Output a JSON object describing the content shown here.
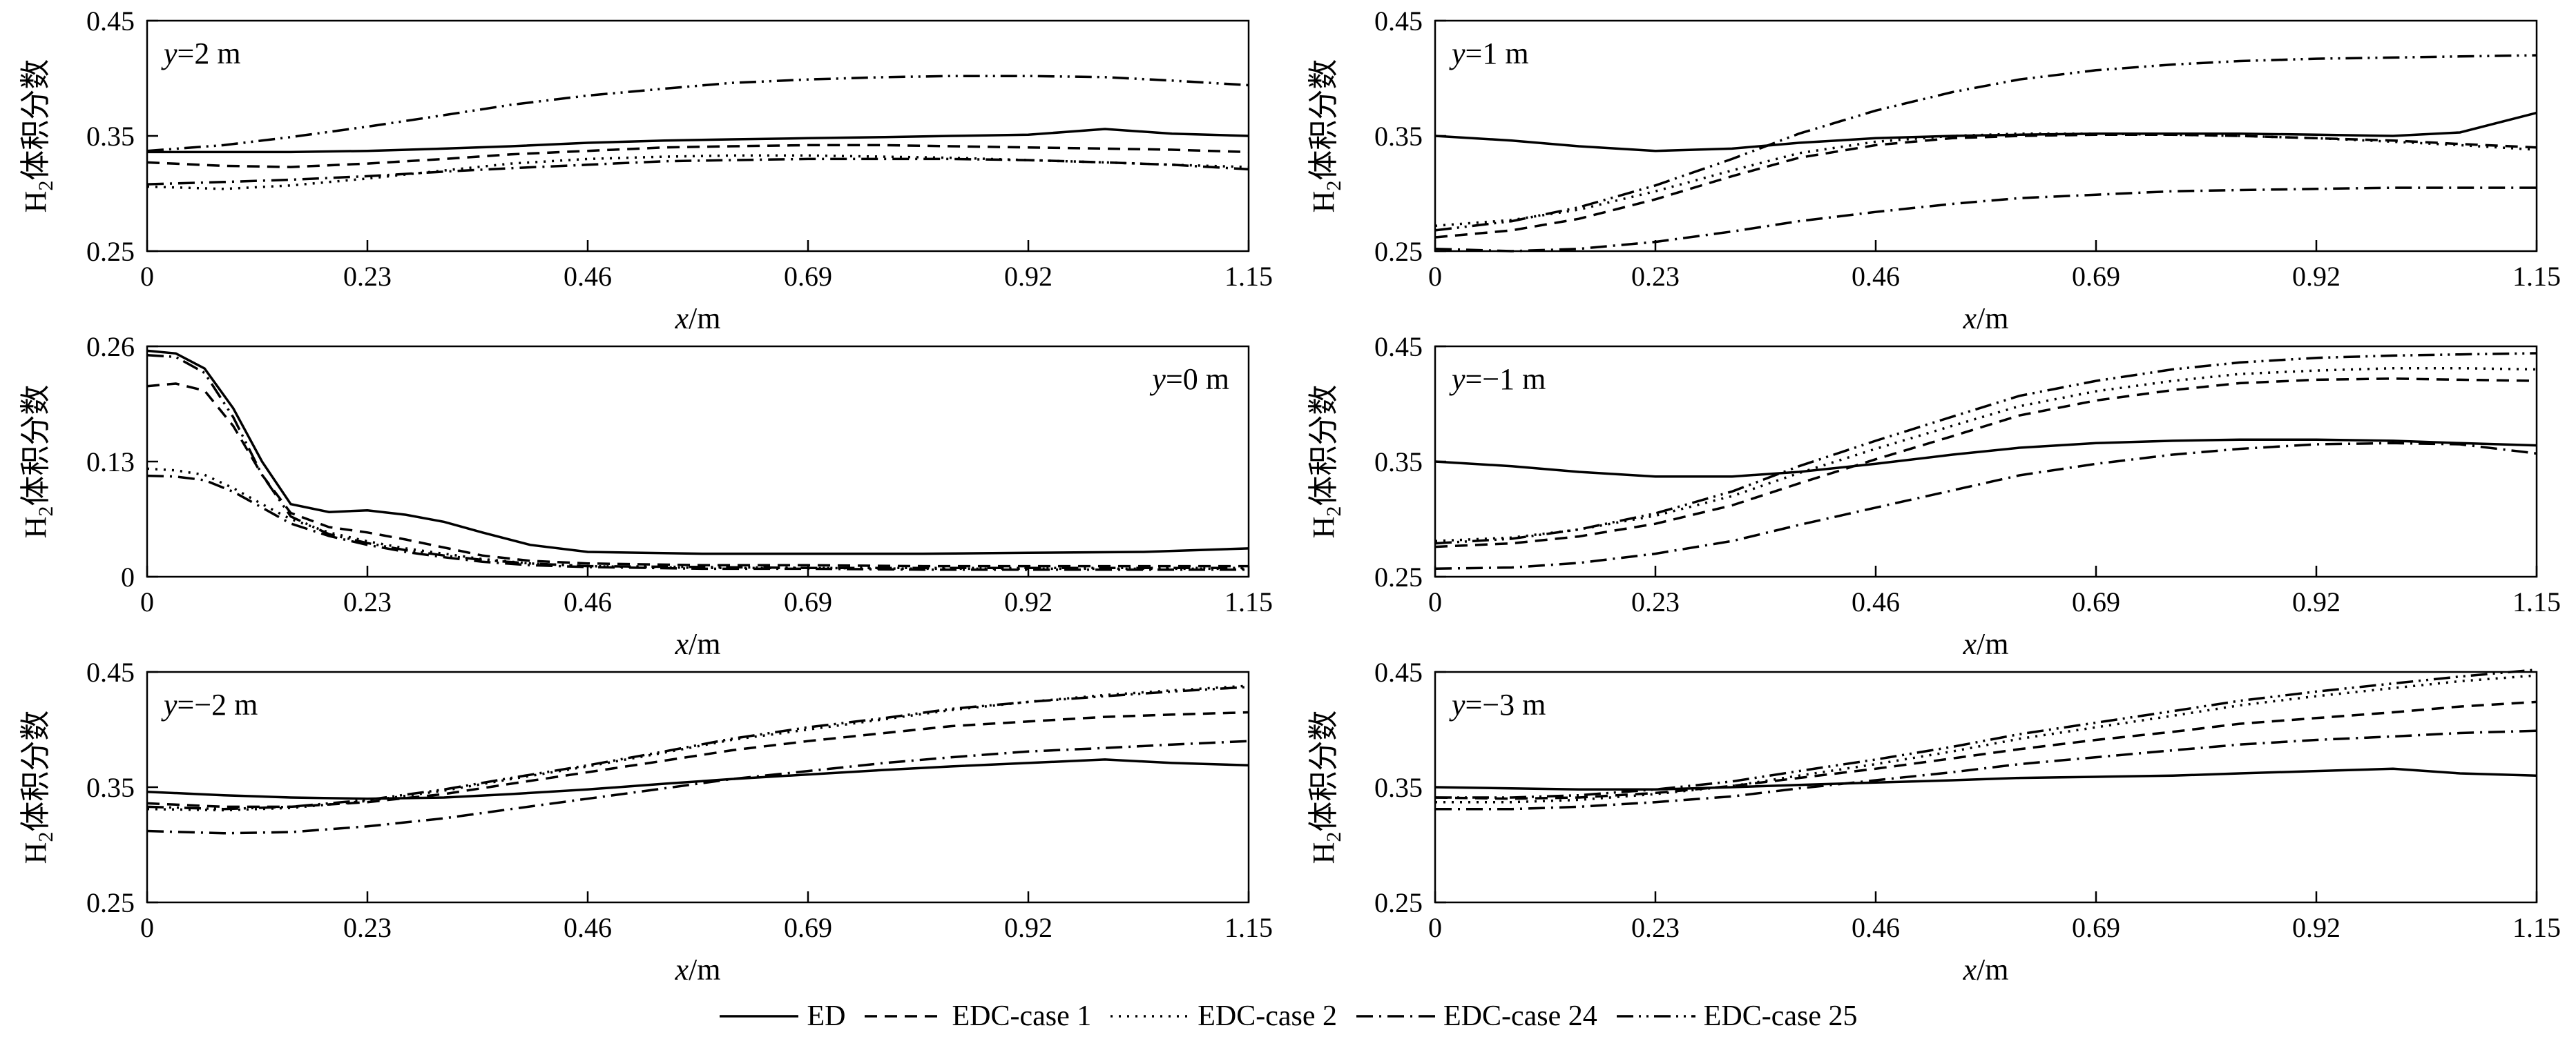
{
  "chart_data": {
    "type": "line",
    "xlabel_italic": "x",
    "xlabel_rest": "/m",
    "ylabel_base": "H",
    "ylabel_sub": "2",
    "ylabel_rest": "体积分数",
    "xlim": [
      0,
      1.15
    ],
    "xtick_values": [
      0,
      0.23,
      0.46,
      0.69,
      0.92,
      1.15
    ],
    "xticks": [
      "0",
      "0.23",
      "0.46",
      "0.69",
      "0.92",
      "1.15"
    ],
    "line_color": "#000000",
    "panels": [
      {
        "id": "y-2m",
        "annotation_italic": "y",
        "annotation_rest": "=2 m",
        "annotation_side": "left",
        "ylim": [
          0.25,
          0.45
        ],
        "yticks": {
          "values": [
            0.25,
            0.35,
            0.45
          ],
          "labels": [
            "0.25",
            "0.35",
            "0.45"
          ]
        },
        "x": [
          0,
          0.08,
          0.15,
          0.23,
          0.31,
          0.38,
          0.46,
          0.54,
          0.61,
          0.69,
          0.77,
          0.84,
          0.92,
          1.0,
          1.07,
          1.15
        ],
        "series": [
          {
            "name": "ED",
            "dash": "solid",
            "y": [
              0.336,
              0.336,
              0.336,
              0.337,
              0.339,
              0.341,
              0.344,
              0.346,
              0.347,
              0.348,
              0.349,
              0.35,
              0.351,
              0.356,
              0.352,
              0.35
            ]
          },
          {
            "name": "EDC-case 1",
            "dash": "dashed",
            "y": [
              0.327,
              0.324,
              0.323,
              0.326,
              0.33,
              0.334,
              0.337,
              0.34,
              0.341,
              0.342,
              0.342,
              0.341,
              0.34,
              0.339,
              0.338,
              0.336
            ]
          },
          {
            "name": "EDC-case 2",
            "dash": "dotted",
            "y": [
              0.306,
              0.304,
              0.307,
              0.313,
              0.32,
              0.326,
              0.33,
              0.332,
              0.333,
              0.333,
              0.332,
              0.331,
              0.329,
              0.327,
              0.325,
              0.323
            ]
          },
          {
            "name": "EDC-case 24",
            "dash": "dashdot",
            "y": [
              0.308,
              0.31,
              0.312,
              0.315,
              0.319,
              0.322,
              0.325,
              0.328,
              0.329,
              0.33,
              0.33,
              0.33,
              0.329,
              0.327,
              0.325,
              0.321
            ]
          },
          {
            "name": "EDC-case 25",
            "dash": "dashdotdot",
            "y": [
              0.337,
              0.342,
              0.349,
              0.358,
              0.368,
              0.377,
              0.385,
              0.391,
              0.396,
              0.399,
              0.401,
              0.402,
              0.402,
              0.401,
              0.398,
              0.394
            ]
          }
        ]
      },
      {
        "id": "y-1m",
        "annotation_italic": "y",
        "annotation_rest": "=1 m",
        "annotation_side": "left",
        "ylim": [
          0.25,
          0.45
        ],
        "yticks": {
          "values": [
            0.25,
            0.35,
            0.45
          ],
          "labels": [
            "0.25",
            "0.35",
            "0.45"
          ]
        },
        "x": [
          0,
          0.08,
          0.15,
          0.23,
          0.31,
          0.38,
          0.46,
          0.54,
          0.61,
          0.69,
          0.77,
          0.84,
          0.92,
          1.0,
          1.07,
          1.15
        ],
        "series": [
          {
            "name": "ED",
            "dash": "solid",
            "y": [
              0.35,
              0.346,
              0.341,
              0.337,
              0.339,
              0.344,
              0.348,
              0.35,
              0.351,
              0.352,
              0.352,
              0.352,
              0.351,
              0.35,
              0.353,
              0.37
            ]
          },
          {
            "name": "EDC-case 1",
            "dash": "dashed",
            "y": [
              0.262,
              0.268,
              0.278,
              0.295,
              0.315,
              0.331,
              0.342,
              0.348,
              0.35,
              0.351,
              0.351,
              0.35,
              0.348,
              0.346,
              0.343,
              0.34
            ]
          },
          {
            "name": "EDC-case 2",
            "dash": "dotted",
            "y": [
              0.272,
              0.277,
              0.286,
              0.302,
              0.32,
              0.335,
              0.345,
              0.35,
              0.352,
              0.352,
              0.351,
              0.35,
              0.348,
              0.345,
              0.342,
              0.338
            ]
          },
          {
            "name": "EDC-case 24",
            "dash": "dashdot",
            "y": [
              0.252,
              0.25,
              0.252,
              0.258,
              0.267,
              0.276,
              0.284,
              0.291,
              0.296,
              0.299,
              0.302,
              0.303,
              0.304,
              0.305,
              0.305,
              0.305
            ]
          },
          {
            "name": "EDC-case 25",
            "dash": "dashdotdot",
            "y": [
              0.268,
              0.276,
              0.288,
              0.307,
              0.33,
              0.352,
              0.372,
              0.388,
              0.399,
              0.407,
              0.412,
              0.415,
              0.417,
              0.418,
              0.419,
              0.42
            ]
          }
        ]
      },
      {
        "id": "y-0m",
        "annotation_italic": "y",
        "annotation_rest": "=0 m",
        "annotation_side": "right",
        "ylim": [
          0,
          0.26
        ],
        "yticks": {
          "values": [
            0,
            0.13,
            0.26
          ],
          "labels": [
            "0",
            "0.13",
            "0.26"
          ]
        },
        "x": [
          0,
          0.03,
          0.06,
          0.09,
          0.12,
          0.15,
          0.19,
          0.23,
          0.27,
          0.31,
          0.35,
          0.4,
          0.46,
          0.58,
          0.69,
          0.81,
          0.92,
          1.04,
          1.15
        ],
        "series": [
          {
            "name": "ED",
            "dash": "solid",
            "y": [
              0.255,
              0.252,
              0.235,
              0.19,
              0.13,
              0.082,
              0.073,
              0.075,
              0.07,
              0.062,
              0.05,
              0.036,
              0.028,
              0.026,
              0.026,
              0.026,
              0.027,
              0.028,
              0.032
            ]
          },
          {
            "name": "EDC-case 1",
            "dash": "dashed",
            "y": [
              0.215,
              0.218,
              0.21,
              0.17,
              0.115,
              0.072,
              0.056,
              0.05,
              0.042,
              0.033,
              0.024,
              0.018,
              0.015,
              0.013,
              0.013,
              0.012,
              0.012,
              0.012,
              0.012
            ]
          },
          {
            "name": "EDC-case 2",
            "dash": "dotted",
            "y": [
              0.122,
              0.12,
              0.115,
              0.1,
              0.082,
              0.065,
              0.05,
              0.04,
              0.032,
              0.026,
              0.02,
              0.015,
              0.012,
              0.01,
              0.01,
              0.009,
              0.009,
              0.009,
              0.009
            ]
          },
          {
            "name": "EDC-case 24",
            "dash": "dashdot",
            "y": [
              0.114,
              0.113,
              0.109,
              0.096,
              0.078,
              0.06,
              0.046,
              0.036,
              0.028,
              0.022,
              0.017,
              0.013,
              0.011,
              0.009,
              0.009,
              0.008,
              0.008,
              0.008,
              0.008
            ]
          },
          {
            "name": "EDC-case 25",
            "dash": "dashdotdot",
            "y": [
              0.25,
              0.248,
              0.23,
              0.18,
              0.115,
              0.068,
              0.048,
              0.038,
              0.03,
              0.024,
              0.019,
              0.015,
              0.012,
              0.011,
              0.01,
              0.01,
              0.01,
              0.01,
              0.01
            ]
          }
        ]
      },
      {
        "id": "y-neg1m",
        "annotation_italic": "y",
        "annotation_rest": "=−1 m",
        "annotation_side": "left",
        "ylim": [
          0.25,
          0.45
        ],
        "yticks": {
          "values": [
            0.25,
            0.35,
            0.45
          ],
          "labels": [
            "0.25",
            "0.35",
            "0.45"
          ]
        },
        "x": [
          0,
          0.08,
          0.15,
          0.23,
          0.31,
          0.38,
          0.46,
          0.54,
          0.61,
          0.69,
          0.77,
          0.84,
          0.92,
          1.0,
          1.07,
          1.15
        ],
        "series": [
          {
            "name": "ED",
            "dash": "solid",
            "y": [
              0.35,
              0.346,
              0.341,
              0.337,
              0.337,
              0.341,
              0.348,
              0.356,
              0.362,
              0.366,
              0.368,
              0.369,
              0.369,
              0.368,
              0.366,
              0.364
            ]
          },
          {
            "name": "EDC-case 1",
            "dash": "dashed",
            "y": [
              0.276,
              0.279,
              0.285,
              0.296,
              0.312,
              0.331,
              0.352,
              0.372,
              0.39,
              0.403,
              0.412,
              0.418,
              0.421,
              0.422,
              0.421,
              0.42
            ]
          },
          {
            "name": "EDC-case 2",
            "dash": "dotted",
            "y": [
              0.281,
              0.284,
              0.291,
              0.303,
              0.32,
              0.34,
              0.361,
              0.381,
              0.398,
              0.411,
              0.42,
              0.426,
              0.429,
              0.431,
              0.431,
              0.43
            ]
          },
          {
            "name": "EDC-case 24",
            "dash": "dashdot",
            "y": [
              0.257,
              0.258,
              0.262,
              0.27,
              0.281,
              0.295,
              0.31,
              0.325,
              0.338,
              0.348,
              0.356,
              0.361,
              0.365,
              0.366,
              0.365,
              0.357
            ]
          },
          {
            "name": "EDC-case 25",
            "dash": "dashdotdot",
            "y": [
              0.279,
              0.283,
              0.291,
              0.305,
              0.324,
              0.346,
              0.368,
              0.389,
              0.407,
              0.42,
              0.43,
              0.436,
              0.44,
              0.442,
              0.443,
              0.444
            ]
          }
        ]
      },
      {
        "id": "y-neg2m",
        "annotation_italic": "y",
        "annotation_rest": "=−2 m",
        "annotation_side": "left",
        "ylim": [
          0.25,
          0.45
        ],
        "yticks": {
          "values": [
            0.25,
            0.35,
            0.45
          ],
          "labels": [
            "0.25",
            "0.35",
            "0.45"
          ]
        },
        "x": [
          0,
          0.08,
          0.15,
          0.23,
          0.31,
          0.38,
          0.46,
          0.54,
          0.61,
          0.69,
          0.77,
          0.84,
          0.92,
          1.0,
          1.07,
          1.15
        ],
        "series": [
          {
            "name": "ED",
            "dash": "solid",
            "y": [
              0.346,
              0.343,
              0.341,
              0.34,
              0.341,
              0.344,
              0.348,
              0.353,
              0.357,
              0.361,
              0.365,
              0.368,
              0.371,
              0.374,
              0.371,
              0.369
            ]
          },
          {
            "name": "EDC-case 1",
            "dash": "dashed",
            "y": [
              0.336,
              0.333,
              0.333,
              0.337,
              0.344,
              0.353,
              0.363,
              0.373,
              0.382,
              0.39,
              0.397,
              0.403,
              0.407,
              0.411,
              0.413,
              0.415
            ]
          },
          {
            "name": "EDC-case 2",
            "dash": "dotted",
            "y": [
              0.331,
              0.33,
              0.332,
              0.338,
              0.347,
              0.357,
              0.368,
              0.38,
              0.391,
              0.4,
              0.409,
              0.417,
              0.424,
              0.43,
              0.434,
              0.438
            ]
          },
          {
            "name": "EDC-case 24",
            "dash": "dashdot",
            "y": [
              0.312,
              0.31,
              0.311,
              0.316,
              0.323,
              0.331,
              0.34,
              0.349,
              0.357,
              0.364,
              0.371,
              0.376,
              0.381,
              0.384,
              0.387,
              0.39
            ]
          },
          {
            "name": "EDC-case 25",
            "dash": "dashdotdot",
            "y": [
              0.333,
              0.331,
              0.333,
              0.339,
              0.348,
              0.358,
              0.369,
              0.381,
              0.392,
              0.402,
              0.41,
              0.418,
              0.424,
              0.429,
              0.433,
              0.437
            ]
          }
        ]
      },
      {
        "id": "y-neg3m",
        "annotation_italic": "y",
        "annotation_rest": "=−3 m",
        "annotation_side": "left",
        "ylim": [
          0.25,
          0.45
        ],
        "yticks": {
          "values": [
            0.25,
            0.35,
            0.45
          ],
          "labels": [
            "0.25",
            "0.35",
            "0.45"
          ]
        },
        "x": [
          0,
          0.08,
          0.15,
          0.23,
          0.31,
          0.38,
          0.46,
          0.54,
          0.61,
          0.69,
          0.77,
          0.84,
          0.92,
          1.0,
          1.07,
          1.15
        ],
        "series": [
          {
            "name": "ED",
            "dash": "solid",
            "y": [
              0.35,
              0.349,
              0.348,
              0.348,
              0.35,
              0.352,
              0.354,
              0.356,
              0.358,
              0.359,
              0.36,
              0.362,
              0.364,
              0.366,
              0.362,
              0.36
            ]
          },
          {
            "name": "EDC-case 1",
            "dash": "dashed",
            "y": [
              0.341,
              0.34,
              0.341,
              0.345,
              0.351,
              0.358,
              0.366,
              0.375,
              0.383,
              0.391,
              0.398,
              0.405,
              0.41,
              0.415,
              0.42,
              0.424
            ]
          },
          {
            "name": "EDC-case 2",
            "dash": "dotted",
            "y": [
              0.337,
              0.337,
              0.339,
              0.344,
              0.351,
              0.36,
              0.37,
              0.381,
              0.392,
              0.402,
              0.412,
              0.421,
              0.429,
              0.436,
              0.442,
              0.447
            ]
          },
          {
            "name": "EDC-case 24",
            "dash": "dashdot",
            "y": [
              0.331,
              0.331,
              0.333,
              0.337,
              0.342,
              0.349,
              0.356,
              0.363,
              0.37,
              0.376,
              0.382,
              0.387,
              0.391,
              0.394,
              0.397,
              0.399
            ]
          },
          {
            "name": "EDC-case 25",
            "dash": "dashdotdot",
            "y": [
              0.341,
              0.341,
              0.343,
              0.348,
              0.355,
              0.364,
              0.374,
              0.385,
              0.396,
              0.406,
              0.416,
              0.425,
              0.433,
              0.44,
              0.446,
              0.452
            ]
          }
        ]
      }
    ]
  },
  "legend": {
    "position": "bottom",
    "items": [
      {
        "label": "ED",
        "dash": "solid"
      },
      {
        "label": "EDC-case 1",
        "dash": "dashed"
      },
      {
        "label": "EDC-case 2",
        "dash": "dotted"
      },
      {
        "label": "EDC-case 24",
        "dash": "dashdot"
      },
      {
        "label": "EDC-case 25",
        "dash": "dashdotdot"
      }
    ]
  }
}
